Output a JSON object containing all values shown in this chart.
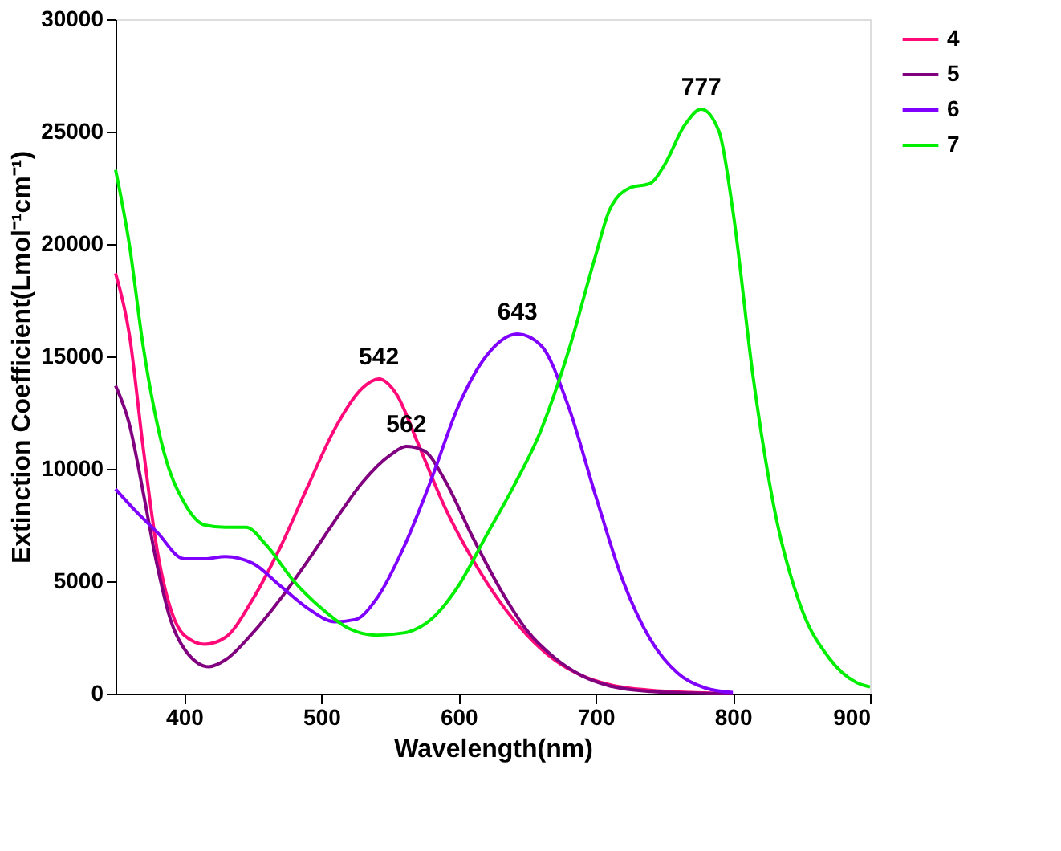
{
  "chart_data": {
    "type": "line",
    "xlabel": "Wavelength(nm)",
    "ylabel": "Extinction Coefficient(Lmol⁻¹cm⁻¹)",
    "xlim": [
      350,
      900
    ],
    "xticks": [
      400,
      500,
      600,
      700,
      800,
      900
    ],
    "ylim": [
      0,
      30000
    ],
    "yticks": [
      0,
      5000,
      10000,
      15000,
      20000,
      25000,
      30000
    ],
    "legend": "right",
    "grid": false,
    "line_style": "solid",
    "marker": "none",
    "series": [
      {
        "name": "4",
        "color": "#ff0a78",
        "x": [
          350,
          360,
          370,
          380,
          390,
          400,
          415,
          430,
          450,
          470,
          490,
          510,
          530,
          542,
          555,
          570,
          590,
          610,
          630,
          650,
          670,
          690,
          710,
          740,
          770,
          800
        ],
        "values": [
          18700,
          16000,
          11000,
          6500,
          3800,
          2600,
          2200,
          2500,
          4200,
          6500,
          9200,
          11800,
          13600,
          14000,
          13300,
          11200,
          8300,
          6000,
          4100,
          2600,
          1500,
          800,
          400,
          150,
          50,
          0
        ]
      },
      {
        "name": "5",
        "color": "#800080",
        "x": [
          350,
          360,
          370,
          380,
          390,
          400,
          418,
          430,
          450,
          470,
          490,
          510,
          530,
          550,
          562,
          575,
          590,
          610,
          630,
          650,
          670,
          690,
          710,
          740,
          770,
          800
        ],
        "values": [
          13700,
          12000,
          9000,
          5800,
          3300,
          2000,
          1200,
          1500,
          2700,
          4200,
          5900,
          7700,
          9400,
          10600,
          11000,
          10800,
          9500,
          7000,
          4700,
          2800,
          1600,
          800,
          350,
          100,
          30,
          0
        ]
      },
      {
        "name": "6",
        "color": "#8000ff",
        "x": [
          350,
          365,
          380,
          400,
          415,
          430,
          450,
          470,
          490,
          510,
          525,
          540,
          560,
          580,
          600,
          620,
          643,
          660,
          680,
          700,
          720,
          740,
          760,
          780,
          800
        ],
        "values": [
          9100,
          8100,
          7200,
          6000,
          6000,
          6100,
          5800,
          4800,
          3800,
          3200,
          3300,
          4200,
          6500,
          9500,
          12800,
          15000,
          16000,
          15500,
          12800,
          8800,
          5000,
          2400,
          900,
          250,
          50
        ]
      },
      {
        "name": "7",
        "color": "#00ee00",
        "x": [
          350,
          360,
          370,
          385,
          400,
          415,
          430,
          445,
          460,
          480,
          500,
          520,
          540,
          560,
          580,
          600,
          620,
          640,
          660,
          680,
          700,
          710,
          725,
          740,
          750,
          765,
          777,
          790,
          800,
          815,
          830,
          850,
          870,
          890,
          900
        ],
        "values": [
          23300,
          20000,
          15500,
          10800,
          8500,
          7500,
          7400,
          7400,
          6600,
          5000,
          3800,
          2900,
          2600,
          2700,
          3300,
          4800,
          7000,
          9200,
          11700,
          15200,
          19500,
          21500,
          22500,
          22700,
          23500,
          25300,
          26000,
          25000,
          21500,
          14000,
          8300,
          3800,
          1600,
          500,
          300
        ]
      }
    ],
    "annotations": [
      {
        "text": "542",
        "x": 542,
        "y": 14000
      },
      {
        "text": "562",
        "x": 562,
        "y": 11000
      },
      {
        "text": "643",
        "x": 643,
        "y": 16000
      },
      {
        "text": "777",
        "x": 777,
        "y": 26000
      }
    ]
  }
}
